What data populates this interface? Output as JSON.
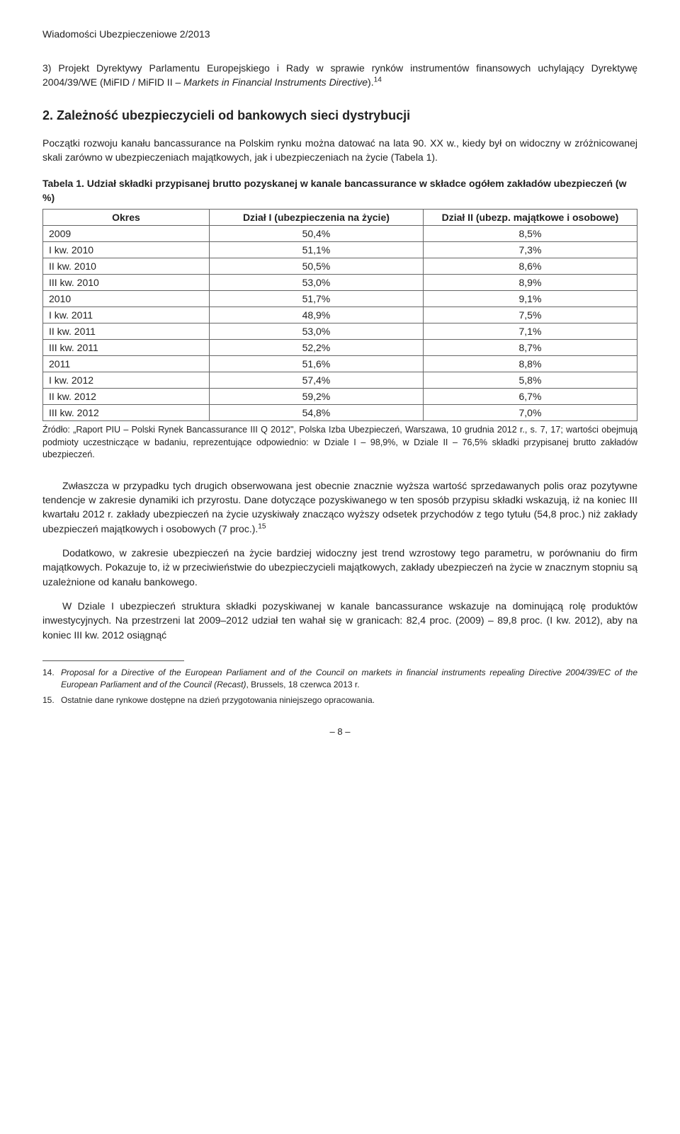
{
  "journal_header": "Wiadomości Ubezpieczeniowe 2/2013",
  "list3": {
    "prefix": "3)",
    "text": " Projekt Dyrektywy Parlamentu Europejskiego i Rady w sprawie rynków instrumentów finansowych uchylający Dyrektywę 2004/39/WE (MiFID / MiFID II – ",
    "italic": "Markets in Financial Instruments Directive",
    "suffix": ").",
    "sup": "14"
  },
  "h2": "2. Zależność ubezpieczycieli od bankowych sieci dystrybucji",
  "intro_para": "Początki rozwoju kanału bancassurance na Polskim rynku można datować na lata 90. XX w., kiedy był on widoczny w zróżnicowanej skali zarówno w ubezpieczeniach majątkowych, jak i ubezpieczeniach na życie (Tabela 1).",
  "table": {
    "title": "Tabela 1. Udział składki przypisanej brutto pozyskanej w kanale bancassurance w składce ogółem zakładów ubezpieczeń (w %)",
    "columns": [
      "Okres",
      "Dział I (ubezpieczenia na życie)",
      "Dział II (ubezp. majątkowe i osobowe)"
    ],
    "rows": [
      [
        "2009",
        "50,4%",
        "8,5%"
      ],
      [
        "I kw. 2010",
        "51,1%",
        "7,3%"
      ],
      [
        "II kw. 2010",
        "50,5%",
        "8,6%"
      ],
      [
        "III kw. 2010",
        "53,0%",
        "8,9%"
      ],
      [
        "2010",
        "51,7%",
        "9,1%"
      ],
      [
        "I kw. 2011",
        "48,9%",
        "7,5%"
      ],
      [
        "II kw. 2011",
        "53,0%",
        "7,1%"
      ],
      [
        "III kw. 2011",
        "52,2%",
        "8,7%"
      ],
      [
        "2011",
        "51,6%",
        "8,8%"
      ],
      [
        "I kw. 2012",
        "57,4%",
        "5,8%"
      ],
      [
        "II kw. 2012",
        "59,2%",
        "6,7%"
      ],
      [
        "III kw. 2012",
        "54,8%",
        "7,0%"
      ]
    ],
    "col_widths": [
      "28%",
      "36%",
      "36%"
    ]
  },
  "source": "Źródło: „Raport PIU – Polski Rynek Bancassurance III Q 2012\", Polska Izba Ubezpieczeń, Warszawa, 10 grudnia 2012 r., s. 7, 17; wartości obejmują podmioty uczestniczące w badaniu, reprezentujące odpowiednio: w Dziale I – 98,9%, w Dziale II – 76,5% składki przypisanej brutto zakładów ubezpieczeń.",
  "body_p1": {
    "pre": "Zwłaszcza w przypadku tych drugich obserwowana jest obecnie znacznie wyższa wartość sprzedawanych polis oraz pozytywne tendencje w zakresie dynamiki ich przyrostu. Dane dotyczące pozyskiwanego w ten sposób przypisu składki wskazują, iż na koniec III kwartału 2012 r. zakłady ubezpieczeń na życie uzyskiwały znacząco wyższy odsetek przychodów z tego tytułu (54,8 proc.) niż zakłady ubezpieczeń majątkowych i osobowych (7 proc.).",
    "sup": "15"
  },
  "body_p2": "Dodatkowo, w zakresie ubezpieczeń na życie bardziej widoczny jest trend wzrostowy tego parametru, w porównaniu do firm majątkowych. Pokazuje to, iż w przeciwieństwie do ubezpieczycieli majątkowych, zakłady ubezpieczeń na życie w znacznym stopniu są uzależnione od kanału bankowego.",
  "body_p3": "W Dziale I ubezpieczeń struktura składki pozyskiwanej w kanale bancassurance wskazuje na dominującą rolę produktów inwestycyjnych. Na przestrzeni lat 2009–2012 udział ten wahał się w granicach: 82,4 proc. (2009) – 89,8 proc. (I kw. 2012), aby na koniec III kw. 2012 osiągnąć",
  "footnotes": {
    "fn14": {
      "num": "14.",
      "italic": "Proposal for a Directive of the European Parliament and of the Council on markets in financial instruments repealing Directive 2004/39/EC of the European Parliament and of the Council (Recast)",
      "tail": ", Brussels, 18 czerwca 2013 r."
    },
    "fn15": {
      "num": "15.",
      "text": "Ostatnie dane rynkowe dostępne na dzień przygotowania niniejszego opracowania."
    }
  },
  "page_number": "– 8 –"
}
